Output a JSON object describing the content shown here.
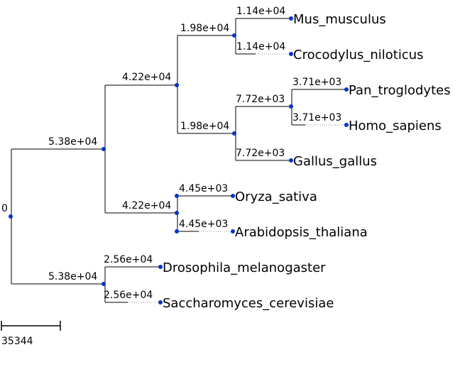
{
  "tree": {
    "root_label": "0",
    "edge_color": "#000000",
    "dotted_color": "#8c8c8c",
    "node_color": "#0033cc",
    "internal": {
      "root": {
        "label": "0"
      },
      "n1": {
        "label": "5.38e+04"
      },
      "n2": {
        "label": "5.38e+04"
      },
      "n3": {
        "label": "4.22e+04"
      },
      "n4": {
        "label": "4.22e+04"
      },
      "n5": {
        "label": "1.98e+04"
      },
      "n6": {
        "label": "1.98e+04"
      },
      "n7": {
        "label": "7.72e+03"
      },
      "n8": {
        "label": "2.56e+04"
      },
      "n9": {
        "label": "4.45e+03"
      }
    },
    "leaves": [
      {
        "name": "Mus_musculus",
        "branch_label": "1.14e+04"
      },
      {
        "name": "Crocodylus_niloticus",
        "branch_label": "1.14e+04"
      },
      {
        "name": "Pan_troglodytes",
        "branch_label": "3.71e+03"
      },
      {
        "name": "Homo_sapiens",
        "branch_label": "3.71e+03"
      },
      {
        "name": "Gallus_gallus",
        "branch_label": "7.72e+03"
      },
      {
        "name": "Oryza_sativa",
        "branch_label": "4.45e+03"
      },
      {
        "name": "Arabidopsis_thaliana",
        "branch_label": "4.45e+03"
      },
      {
        "name": "Drosophila_melanogaster",
        "branch_label": "2.56e+04"
      },
      {
        "name": "Saccharomyces_cerevisiae",
        "branch_label": "2.56e+04"
      }
    ],
    "scale_bar": {
      "label": "35344"
    }
  }
}
